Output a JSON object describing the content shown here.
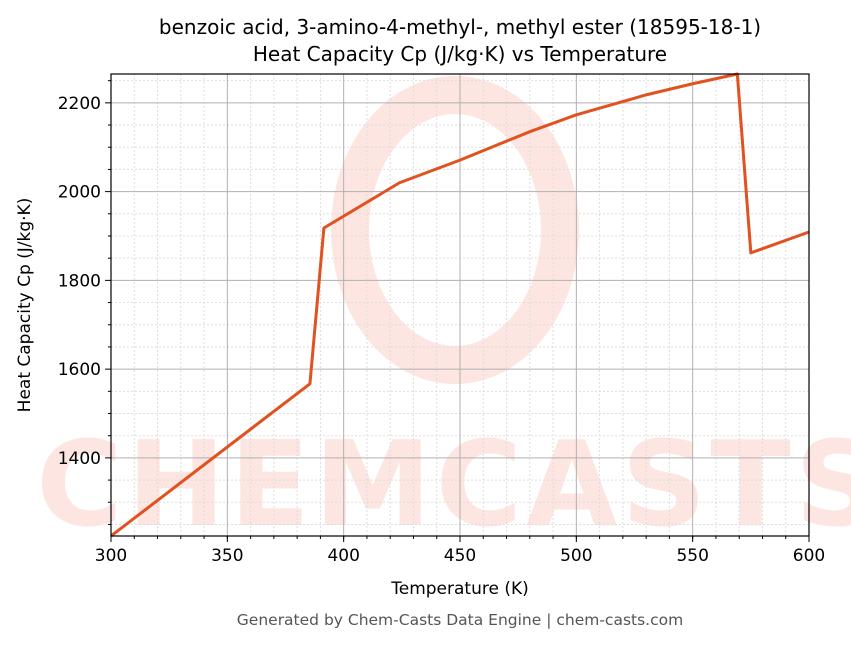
{
  "chart_data": {
    "type": "line",
    "title": "benzoic acid, 3-amino-4-methyl-, methyl ester (18595-18-1)",
    "subtitle": "Heat Capacity Cp (J/kg·K) vs Temperature",
    "xlabel": "Temperature (K)",
    "ylabel": "Heat Capacity Cp (J/kg·K)",
    "xlim": [
      300,
      600
    ],
    "ylim": [
      1224,
      2265
    ],
    "xticks": [
      300,
      350,
      400,
      450,
      500,
      550,
      600
    ],
    "yticks": [
      1400,
      1600,
      1800,
      2000,
      2200
    ],
    "grid": true,
    "color": "#e0521f",
    "series": [
      {
        "x": [
          300,
          385.5,
          391.5,
          424,
          450,
          480,
          500,
          530,
          550,
          569.2,
          575,
          600
        ],
        "y": [
          1224,
          1567,
          1918,
          2020,
          2071,
          2135,
          2173,
          2218,
          2243,
          2265,
          1862,
          1909
        ]
      }
    ]
  },
  "watermark": "CHEMCASTS",
  "footer": "Generated by Chem-Casts Data Engine | chem-casts.com"
}
